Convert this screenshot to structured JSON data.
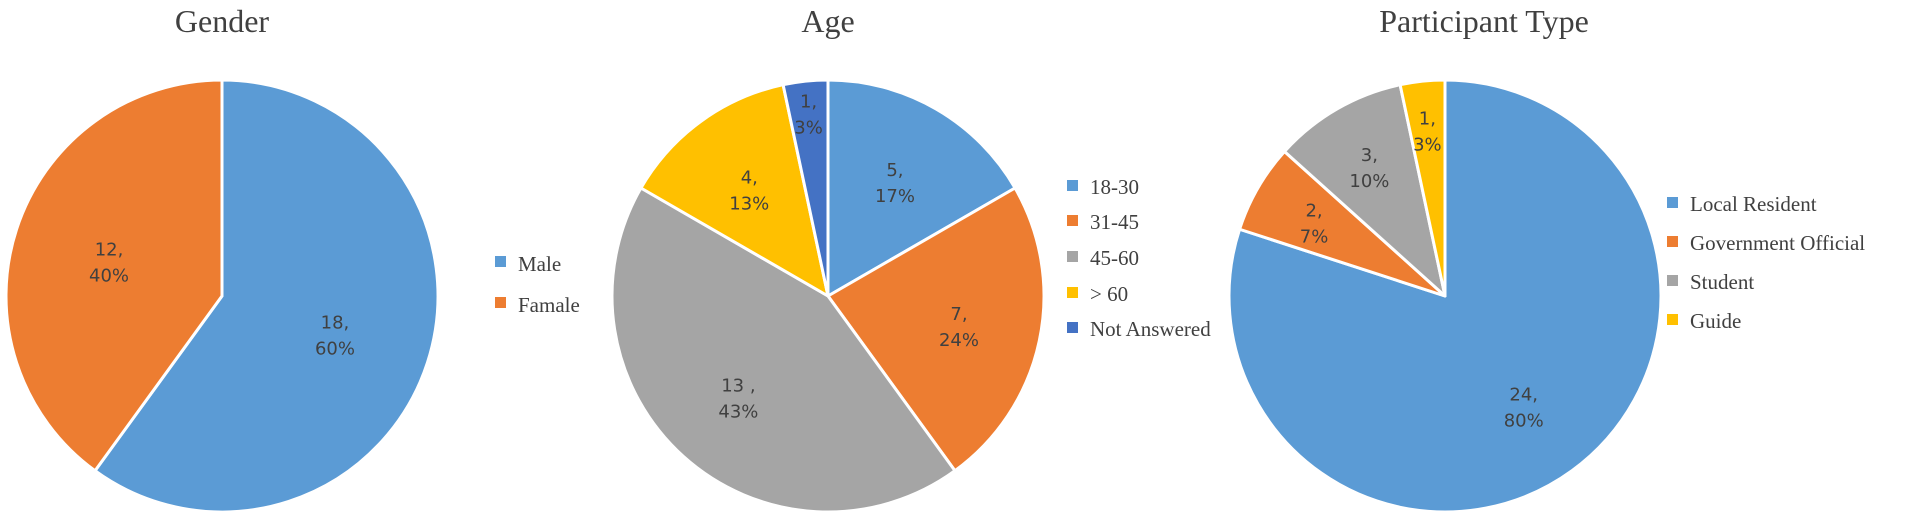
{
  "chart_data": [
    {
      "type": "pie",
      "title": "Gender",
      "categories": [
        "Male",
        "Famale"
      ],
      "values": [
        18,
        12
      ],
      "percentages": [
        "60%",
        "40%"
      ],
      "data_labels": [
        [
          "18,",
          "60%"
        ],
        [
          "12,",
          "40%"
        ]
      ],
      "colors": [
        "#5B9BD5",
        "#ED7D31"
      ],
      "legend": "right"
    },
    {
      "type": "pie",
      "title": "Age",
      "categories": [
        "18-30",
        "31-45",
        "45-60",
        "> 60",
        "Not Answered"
      ],
      "values": [
        5,
        7,
        13,
        4,
        1
      ],
      "percentages": [
        "17%",
        "24%",
        "43%",
        "13%",
        "3%"
      ],
      "data_labels": [
        [
          "5,",
          "17%"
        ],
        [
          "7,",
          "24%"
        ],
        [
          "13 ,",
          "43%"
        ],
        [
          "4,",
          "13%"
        ],
        [
          "1,",
          "3%"
        ]
      ],
      "colors": [
        "#5B9BD5",
        "#ED7D31",
        "#A5A5A5",
        "#FFC000",
        "#4472C4"
      ],
      "legend": "right"
    },
    {
      "type": "pie",
      "title": "Participant Type",
      "categories": [
        "Local Resident",
        "Government Official",
        "Student",
        "Guide"
      ],
      "values": [
        24,
        2,
        3,
        1
      ],
      "percentages": [
        "80%",
        "7%",
        "10%",
        "3%"
      ],
      "data_labels": [
        [
          "24,",
          "80%"
        ],
        [
          "2,",
          "7%"
        ],
        [
          "3,",
          "10%"
        ],
        [
          "1,",
          "3%"
        ]
      ],
      "colors": [
        "#5B9BD5",
        "#ED7D31",
        "#A5A5A5",
        "#FFC000"
      ],
      "legend": "right"
    }
  ]
}
